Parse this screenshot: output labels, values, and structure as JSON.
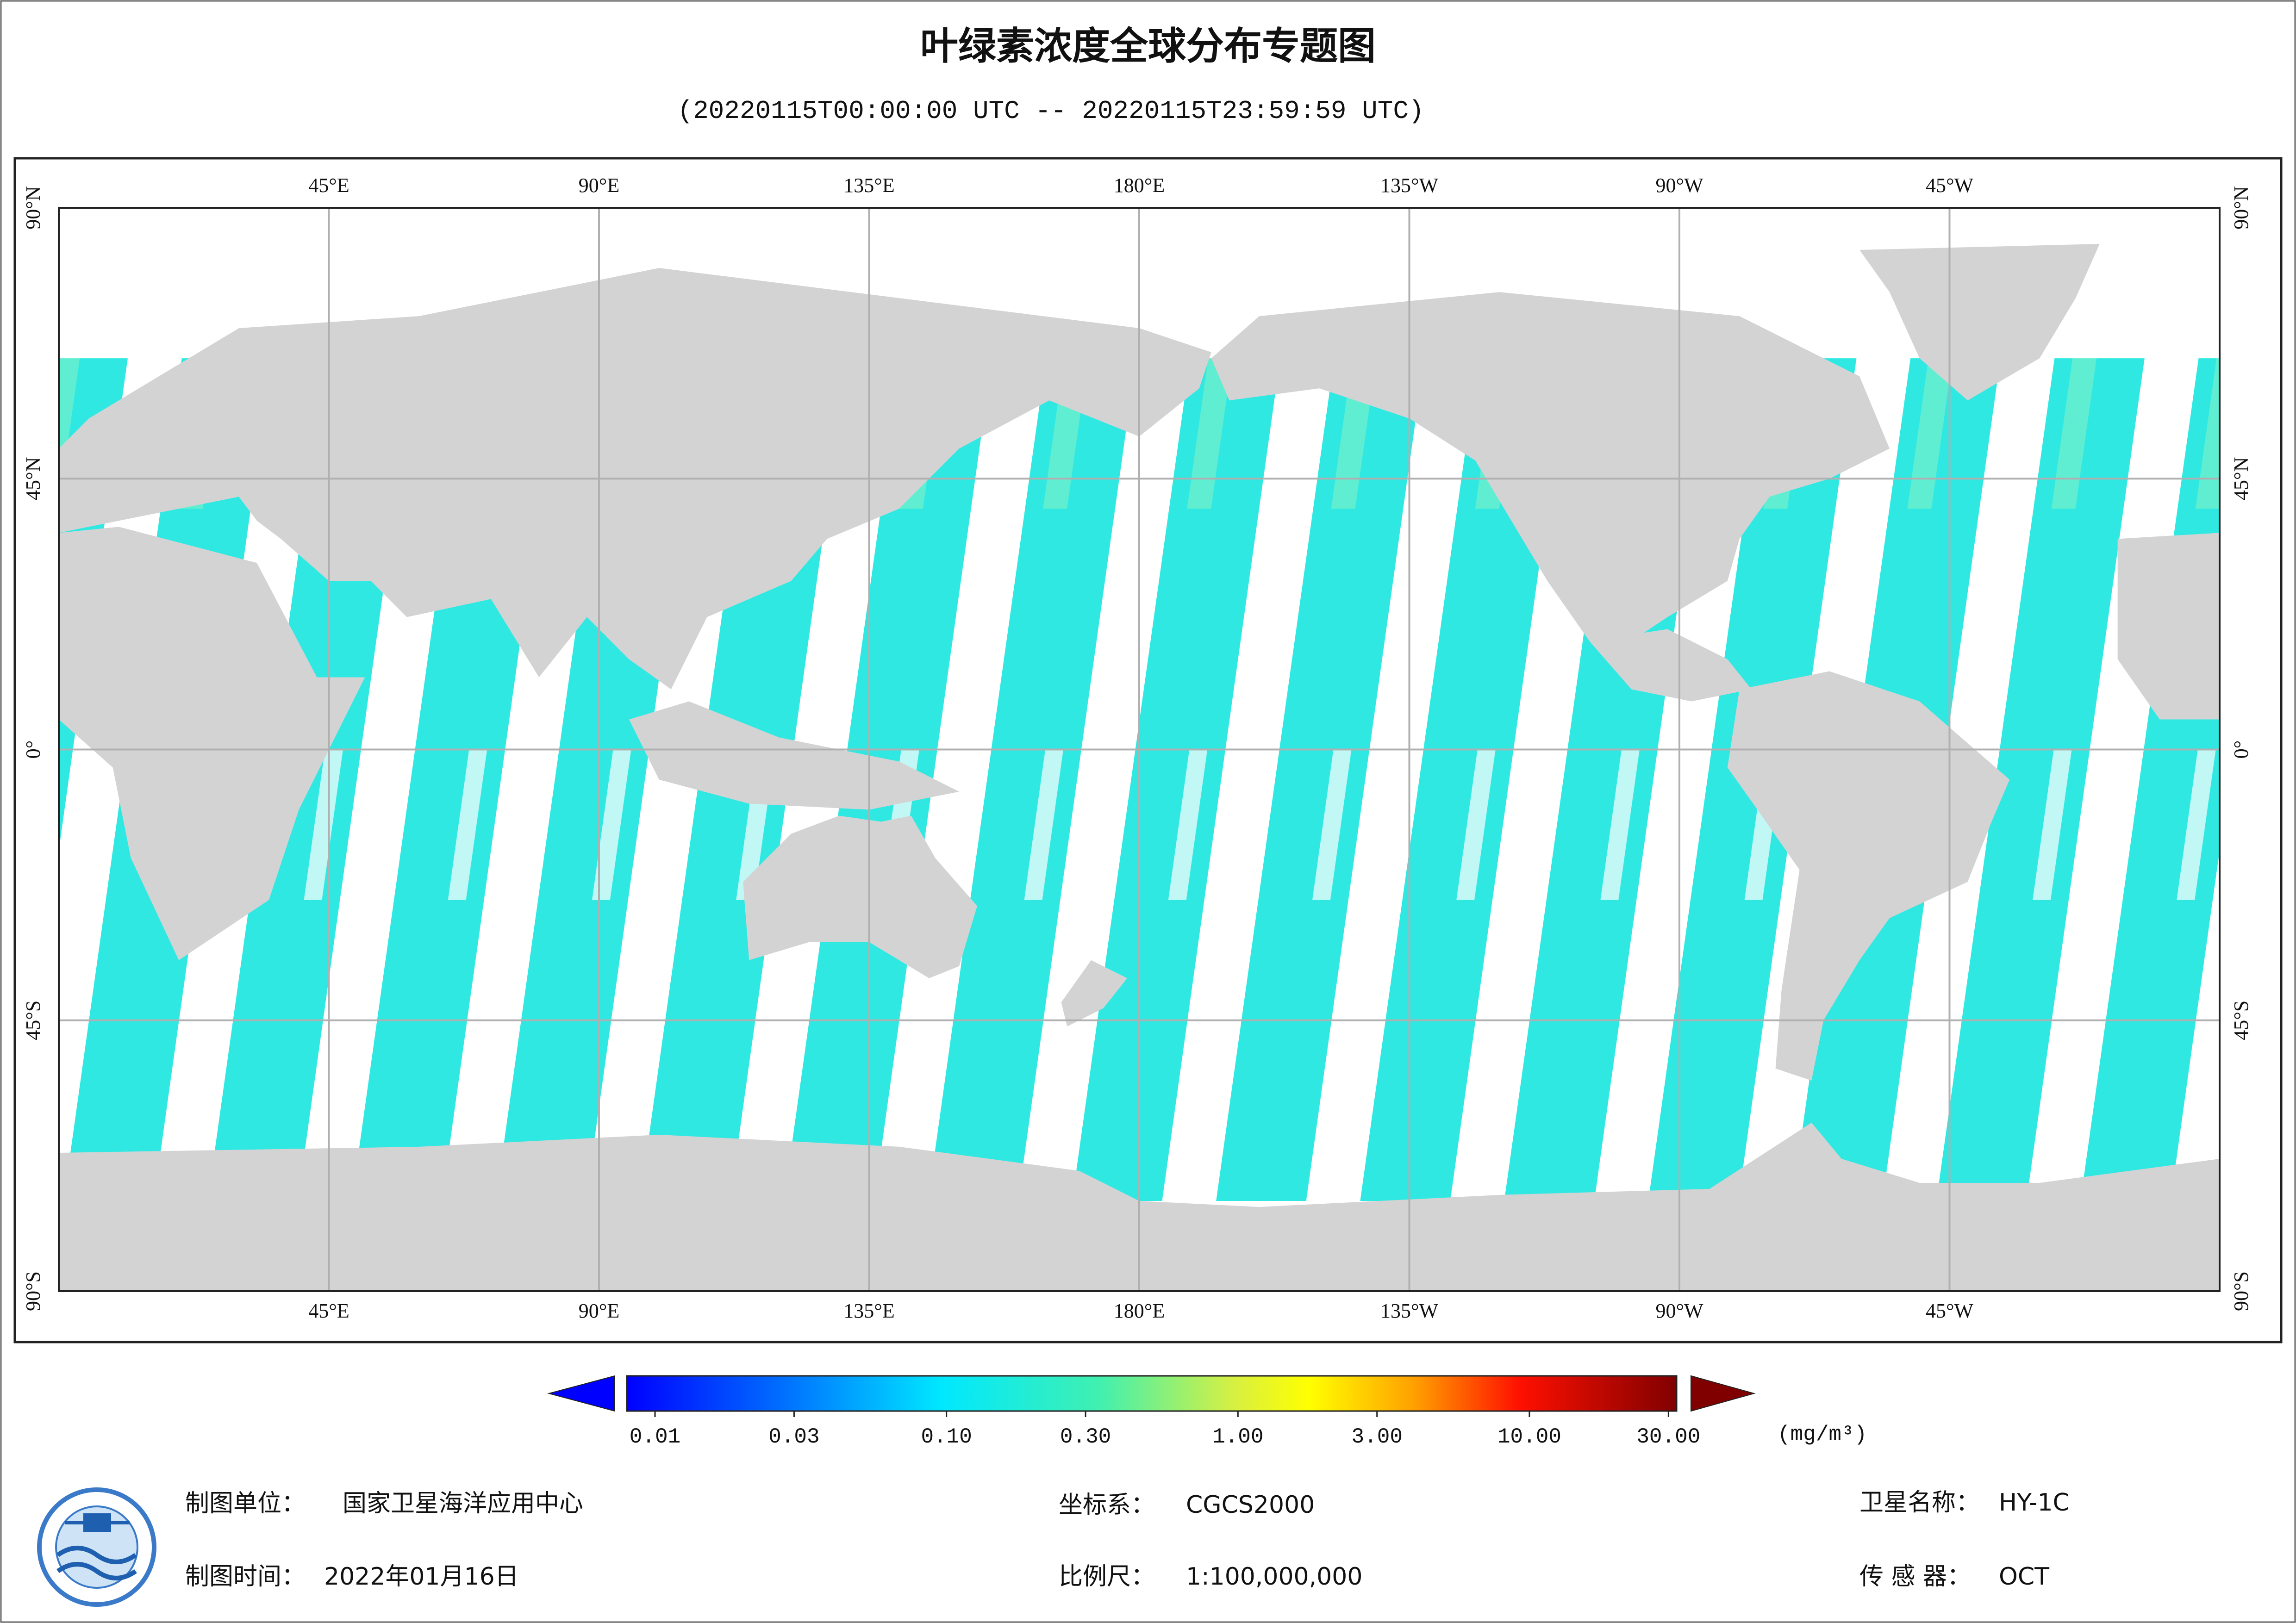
{
  "title": "叶绿素浓度全球分布专题图",
  "subtitle": "(20220115T00:00:00 UTC -- 20220115T23:59:59 UTC)",
  "map": {
    "lon_labels": [
      "45°E",
      "90°E",
      "135°E",
      "180°E",
      "135°W",
      "90°W",
      "45°W"
    ],
    "lat_labels": [
      "90°N",
      "45°N",
      "0°",
      "45°S",
      "90°S"
    ]
  },
  "colorbar": {
    "scale": "log",
    "lim": [
      0.008,
      32
    ],
    "ticks": [
      {
        "value": 0.01,
        "label": "0.01"
      },
      {
        "value": 0.03,
        "label": "0.03"
      },
      {
        "value": 0.1,
        "label": "0.10"
      },
      {
        "value": 0.3,
        "label": "0.30"
      },
      {
        "value": 1,
        "label": "1.00"
      },
      {
        "value": 3,
        "label": "3.00"
      },
      {
        "value": 10,
        "label": "10.00"
      },
      {
        "value": 30,
        "label": "30.00"
      }
    ],
    "unit": "(mg/m³)"
  },
  "footer": {
    "unit": {
      "label": "制图单位：",
      "value": "国家卫星海洋应用中心"
    },
    "date": {
      "label": "制图时间：",
      "value": "2022年01月16日"
    },
    "crs": {
      "label": "坐标系：",
      "value": "CGCS2000"
    },
    "scale": {
      "label": "比例尺：",
      "value": "1:100,000,000"
    },
    "satellite": {
      "label": "卫星名称：",
      "value": "HY-1C"
    },
    "sensor": {
      "label": "传 感 器：",
      "value": "OCT"
    }
  }
}
